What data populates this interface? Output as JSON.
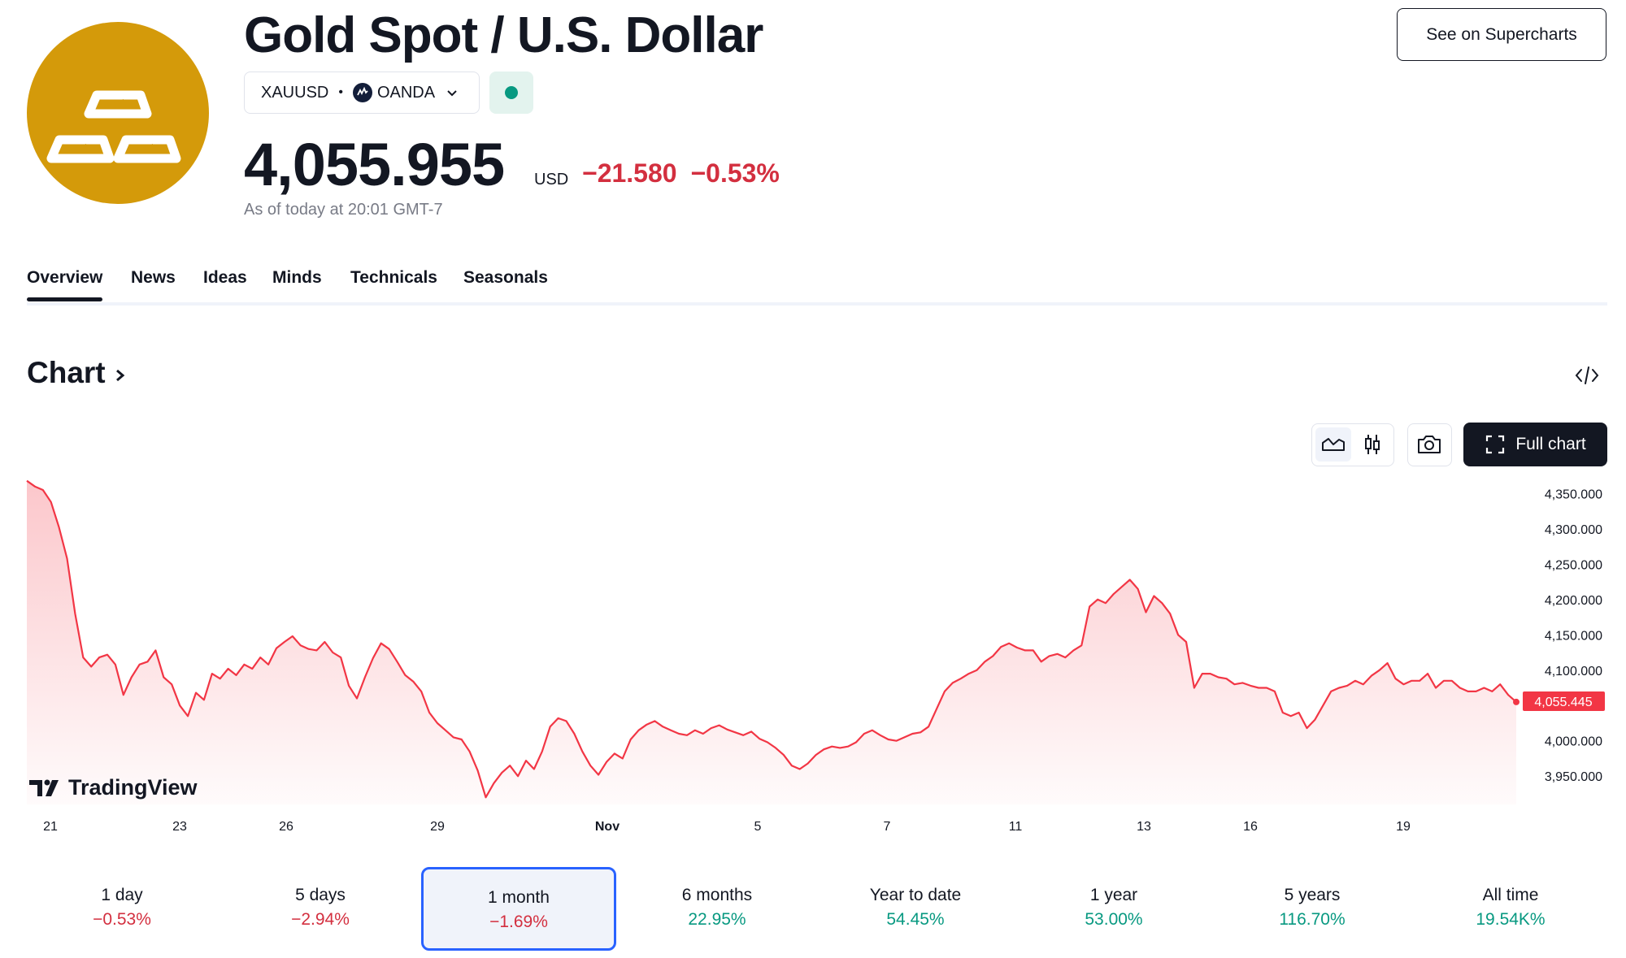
{
  "header": {
    "title": "Gold Spot / U.S. Dollar",
    "symbol": "XAUUSD",
    "separator": "•",
    "broker": "OANDA",
    "price": "4,055.955",
    "currency": "USD",
    "change": "−21.580",
    "change_percent": "−0.53%",
    "as_of": "As of today at 20:01 GMT-7",
    "supercharts_label": "See on Supercharts",
    "logo_icon": "gold-bars-icon",
    "market_status": "open",
    "colors": {
      "logo": "#D49A0A",
      "negative": "#d32f3f",
      "positive": "#089981",
      "status": "#089981"
    }
  },
  "tabs": [
    {
      "label": "Overview",
      "active": true
    },
    {
      "label": "News"
    },
    {
      "label": "Ideas"
    },
    {
      "label": "Minds"
    },
    {
      "label": "Technicals"
    },
    {
      "label": "Seasonals"
    }
  ],
  "chart_section": {
    "heading": "Chart",
    "heading_icon": "chevron-right-icon",
    "embed_icon": "code-icon",
    "full_chart_label": "Full chart",
    "toolbar_icons": [
      "area-chart-icon",
      "candles-icon",
      "camera-icon",
      "fullscreen-icon"
    ],
    "watermark": "TradingView"
  },
  "chart_data": {
    "type": "area",
    "x_tick_labels": [
      "21",
      "23",
      "26",
      "29",
      "Nov",
      "5",
      "7",
      "11",
      "13",
      "16",
      "19"
    ],
    "y_tick_labels": [
      "4,350.000",
      "4,300.000",
      "4,250.000",
      "4,200.000",
      "4,150.000",
      "4,100.000",
      "4,000.000",
      "3,950.000"
    ],
    "ylim": [
      3910,
      4370
    ],
    "last_value_label": "4,055.445",
    "last_value": 4055.445,
    "line_color": "#f23645",
    "grid": false,
    "approx_points": [
      [
        0,
        4368
      ],
      [
        1,
        4360
      ],
      [
        2,
        4355
      ],
      [
        3,
        4338
      ],
      [
        4,
        4302
      ],
      [
        5,
        4258
      ],
      [
        6,
        4180
      ],
      [
        7,
        4118
      ],
      [
        8,
        4105
      ],
      [
        9,
        4118
      ],
      [
        10,
        4122
      ],
      [
        11,
        4108
      ],
      [
        12,
        4065
      ],
      [
        13,
        4090
      ],
      [
        14,
        4108
      ],
      [
        15,
        4112
      ],
      [
        16,
        4128
      ],
      [
        17,
        4090
      ],
      [
        18,
        4080
      ],
      [
        19,
        4050
      ],
      [
        20,
        4035
      ],
      [
        21,
        4068
      ],
      [
        22,
        4058
      ],
      [
        23,
        4095
      ],
      [
        24,
        4088
      ],
      [
        25,
        4102
      ],
      [
        26,
        4093
      ],
      [
        27,
        4108
      ],
      [
        28,
        4102
      ],
      [
        29,
        4118
      ],
      [
        30,
        4108
      ],
      [
        31,
        4131
      ],
      [
        32,
        4140
      ],
      [
        33,
        4148
      ],
      [
        34,
        4135
      ],
      [
        35,
        4130
      ],
      [
        36,
        4128
      ],
      [
        37,
        4140
      ],
      [
        38,
        4125
      ],
      [
        39,
        4118
      ],
      [
        40,
        4078
      ],
      [
        41,
        4060
      ],
      [
        42,
        4090
      ],
      [
        43,
        4117
      ],
      [
        44,
        4138
      ],
      [
        45,
        4130
      ],
      [
        46,
        4112
      ],
      [
        47,
        4093
      ],
      [
        48,
        4084
      ],
      [
        49,
        4070
      ],
      [
        50,
        4040
      ],
      [
        51,
        4025
      ],
      [
        52,
        4015
      ],
      [
        53,
        4005
      ],
      [
        54,
        4002
      ],
      [
        55,
        3985
      ],
      [
        56,
        3958
      ],
      [
        57,
        3920
      ],
      [
        58,
        3940
      ],
      [
        59,
        3955
      ],
      [
        60,
        3965
      ],
      [
        61,
        3950
      ],
      [
        62,
        3972
      ],
      [
        63,
        3960
      ],
      [
        64,
        3985
      ],
      [
        65,
        4020
      ],
      [
        66,
        4032
      ],
      [
        67,
        4028
      ],
      [
        68,
        4010
      ],
      [
        69,
        3985
      ],
      [
        70,
        3965
      ],
      [
        71,
        3952
      ],
      [
        72,
        3970
      ],
      [
        73,
        3982
      ],
      [
        74,
        3975
      ],
      [
        75,
        4002
      ],
      [
        76,
        4015
      ],
      [
        77,
        4023
      ],
      [
        78,
        4028
      ],
      [
        79,
        4020
      ],
      [
        80,
        4015
      ],
      [
        81,
        4010
      ],
      [
        82,
        4008
      ],
      [
        83,
        4015
      ],
      [
        84,
        4010
      ],
      [
        85,
        4018
      ],
      [
        86,
        4022
      ],
      [
        87,
        4016
      ],
      [
        88,
        4012
      ],
      [
        89,
        4008
      ],
      [
        90,
        4013
      ],
      [
        91,
        4003
      ],
      [
        92,
        3998
      ],
      [
        93,
        3990
      ],
      [
        94,
        3980
      ],
      [
        95,
        3965
      ],
      [
        96,
        3960
      ],
      [
        97,
        3968
      ],
      [
        98,
        3980
      ],
      [
        99,
        3988
      ],
      [
        100,
        3992
      ],
      [
        101,
        3990
      ],
      [
        102,
        3992
      ],
      [
        103,
        3998
      ],
      [
        104,
        4010
      ],
      [
        105,
        4015
      ],
      [
        106,
        4008
      ],
      [
        107,
        4002
      ],
      [
        108,
        4000
      ],
      [
        109,
        4005
      ],
      [
        110,
        4010
      ],
      [
        111,
        4012
      ],
      [
        112,
        4020
      ],
      [
        113,
        4045
      ],
      [
        114,
        4070
      ],
      [
        115,
        4082
      ],
      [
        116,
        4088
      ],
      [
        117,
        4095
      ],
      [
        118,
        4100
      ],
      [
        119,
        4112
      ],
      [
        120,
        4120
      ],
      [
        121,
        4133
      ],
      [
        122,
        4138
      ],
      [
        123,
        4132
      ],
      [
        124,
        4128
      ],
      [
        125,
        4128
      ],
      [
        126,
        4112
      ],
      [
        127,
        4120
      ],
      [
        128,
        4123
      ],
      [
        129,
        4118
      ],
      [
        130,
        4128
      ],
      [
        131,
        4135
      ],
      [
        132,
        4190
      ],
      [
        133,
        4200
      ],
      [
        134,
        4195
      ],
      [
        135,
        4208
      ],
      [
        136,
        4218
      ],
      [
        137,
        4228
      ],
      [
        138,
        4215
      ],
      [
        139,
        4182
      ],
      [
        140,
        4205
      ],
      [
        141,
        4195
      ],
      [
        142,
        4180
      ],
      [
        143,
        4150
      ],
      [
        144,
        4140
      ],
      [
        145,
        4075
      ],
      [
        146,
        4095
      ],
      [
        147,
        4095
      ],
      [
        148,
        4090
      ],
      [
        149,
        4088
      ],
      [
        150,
        4080
      ],
      [
        151,
        4082
      ],
      [
        152,
        4078
      ],
      [
        153,
        4075
      ],
      [
        154,
        4075
      ],
      [
        155,
        4070
      ],
      [
        156,
        4040
      ],
      [
        157,
        4035
      ],
      [
        158,
        4040
      ],
      [
        159,
        4018
      ],
      [
        160,
        4030
      ],
      [
        161,
        4050
      ],
      [
        162,
        4070
      ],
      [
        163,
        4075
      ],
      [
        164,
        4078
      ],
      [
        165,
        4085
      ],
      [
        166,
        4080
      ],
      [
        167,
        4092
      ],
      [
        168,
        4100
      ],
      [
        169,
        4110
      ],
      [
        170,
        4088
      ],
      [
        171,
        4080
      ],
      [
        172,
        4085
      ],
      [
        173,
        4085
      ],
      [
        174,
        4095
      ],
      [
        175,
        4075
      ],
      [
        176,
        4085
      ],
      [
        177,
        4085
      ],
      [
        178,
        4075
      ],
      [
        179,
        4070
      ],
      [
        180,
        4070
      ],
      [
        181,
        4075
      ],
      [
        182,
        4070
      ],
      [
        183,
        4080
      ],
      [
        184,
        4065
      ],
      [
        185,
        4055
      ]
    ]
  },
  "periods": [
    {
      "label": "1 day",
      "value": "−0.53%",
      "color": "#d32f3f"
    },
    {
      "label": "5 days",
      "value": "−2.94%",
      "color": "#d32f3f"
    },
    {
      "label": "1 month",
      "value": "−1.69%",
      "color": "#d32f3f",
      "selected": true
    },
    {
      "label": "6 months",
      "value": "22.95%",
      "color": "#089981"
    },
    {
      "label": "Year to date",
      "value": "54.45%",
      "color": "#089981"
    },
    {
      "label": "1 year",
      "value": "53.00%",
      "color": "#089981"
    },
    {
      "label": "5 years",
      "value": "116.70%",
      "color": "#089981"
    },
    {
      "label": "All time",
      "value": "19.54K%",
      "color": "#089981"
    }
  ]
}
